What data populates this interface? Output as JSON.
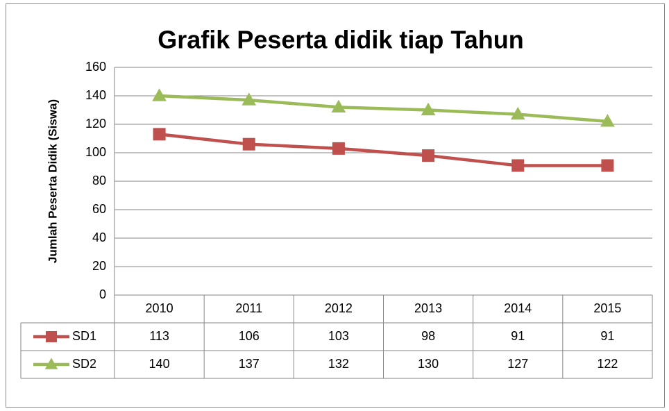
{
  "chart_data": {
    "type": "line",
    "title": "Grafik Peserta didik tiap Tahun",
    "y_label": "Jumlah Peserta Didik (Siswa)",
    "categories": [
      "2010",
      "2011",
      "2012",
      "2013",
      "2014",
      "2015"
    ],
    "series": [
      {
        "name": "SD1",
        "color": "#c0504d",
        "marker": "square",
        "values": [
          113,
          106,
          103,
          98,
          91,
          91
        ]
      },
      {
        "name": "SD2",
        "color": "#9bbb59",
        "marker": "triangle",
        "values": [
          140,
          137,
          132,
          130,
          127,
          122
        ]
      }
    ],
    "ylim": [
      0,
      160
    ],
    "yticks": [
      0,
      20,
      40,
      60,
      80,
      100,
      120,
      140,
      160
    ],
    "grid": true,
    "data_table": true
  }
}
